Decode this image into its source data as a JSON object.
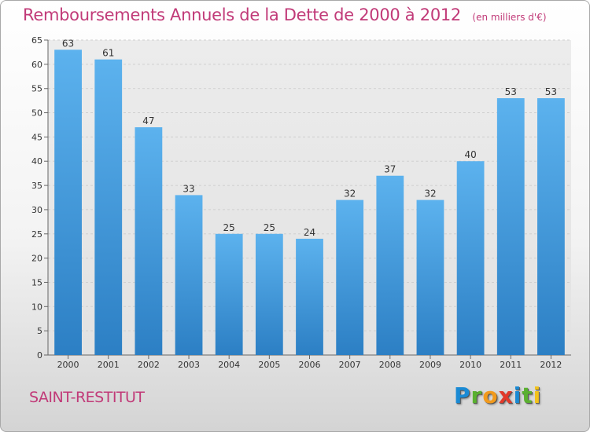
{
  "chart_data": {
    "type": "bar",
    "title": "Remboursements Annuels de la Dette de 2000 à 2012",
    "unit_note": "(en milliers d'€)",
    "categories": [
      "2000",
      "2001",
      "2002",
      "2003",
      "2004",
      "2005",
      "2006",
      "2007",
      "2008",
      "2009",
      "2010",
      "2011",
      "2012"
    ],
    "values": [
      63,
      61,
      47,
      33,
      25,
      25,
      24,
      32,
      37,
      32,
      40,
      53,
      53
    ],
    "ylim": [
      0,
      65
    ],
    "yticks": [
      0,
      5,
      10,
      15,
      20,
      25,
      30,
      35,
      40,
      45,
      50,
      55,
      60,
      65
    ],
    "xlabel": "",
    "ylabel": "",
    "grid": true,
    "bar_color": "#4aa3e3"
  },
  "footer": {
    "commune": "SAINT-RESTITUT",
    "logo_text": "Proxiti"
  }
}
